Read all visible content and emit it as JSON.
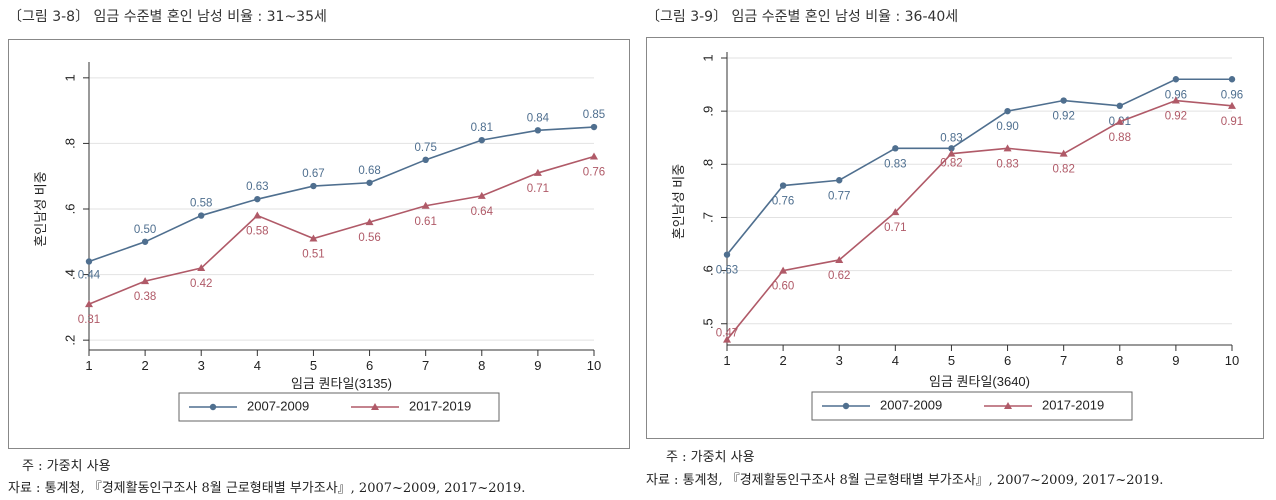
{
  "figures": [
    {
      "caption": "〔그림 3-8〕 임금 수준별 혼인 남성 비율 : 31~35세",
      "note": "주 : 가중치 사용",
      "source": "자료 : 통계청, 『경제활동인구조사 8월 근로형태별 부가조사』, 2007~2009, 2017~2019."
    },
    {
      "caption": "〔그림 3-9〕 임금 수준별 혼인 남성 비율 : 36-40세",
      "note": "주 : 가중치 사용",
      "source": "자료 : 통계청, 『경제활동인구조사 8월 근로형태별 부가조사』, 2007~2009, 2017~2019."
    }
  ],
  "chart_data": [
    {
      "type": "line",
      "x": [
        1,
        2,
        3,
        4,
        5,
        6,
        7,
        8,
        9,
        10
      ],
      "xticks": [
        "1",
        "2",
        "3",
        "4",
        "5",
        "6",
        "7",
        "8",
        "9",
        "10"
      ],
      "xlabel": "임금 퀀타일(3135)",
      "ylabel": "혼인남성 비중",
      "ylim": [
        0.17,
        1.03
      ],
      "yticks": [
        0.2,
        0.4,
        0.6,
        0.8,
        1.0
      ],
      "ytick_labels": [
        ".2",
        ".4",
        ".6",
        ".8",
        "1"
      ],
      "grid": true,
      "legend_position": "bottom",
      "series": [
        {
          "name": "2007-2009",
          "color": "#4f6f8f",
          "marker": "circle",
          "values": [
            0.44,
            0.5,
            0.58,
            0.63,
            0.67,
            0.68,
            0.75,
            0.81,
            0.84,
            0.85
          ],
          "labels": [
            "0.44",
            "0.50",
            "0.58",
            "0.63",
            "0.67",
            "0.68",
            "0.75",
            "0.81",
            "0.84",
            "0.85"
          ]
        },
        {
          "name": "2017-2019",
          "color": "#b05a68",
          "marker": "triangle",
          "values": [
            0.31,
            0.38,
            0.42,
            0.58,
            0.51,
            0.56,
            0.61,
            0.64,
            0.71,
            0.76
          ],
          "labels": [
            "0.31",
            "0.38",
            "0.42",
            "0.58",
            "0.51",
            "0.56",
            "0.61",
            "0.64",
            "0.71",
            "0.76"
          ]
        }
      ]
    },
    {
      "type": "line",
      "x": [
        1,
        2,
        3,
        4,
        5,
        6,
        7,
        8,
        9,
        10
      ],
      "xticks": [
        "1",
        "2",
        "3",
        "4",
        "5",
        "6",
        "7",
        "8",
        "9",
        "10"
      ],
      "xlabel": "임금 퀀타일(3640)",
      "ylabel": "혼인남성 비중",
      "ylim": [
        0.46,
        1.0
      ],
      "yticks": [
        0.5,
        0.6,
        0.7,
        0.8,
        0.9,
        1.0
      ],
      "ytick_labels": [
        ".5",
        ".6",
        ".7",
        ".8",
        ".9",
        "1"
      ],
      "grid": true,
      "legend_position": "bottom",
      "series": [
        {
          "name": "2007-2009",
          "color": "#4f6f8f",
          "marker": "circle",
          "values": [
            0.63,
            0.76,
            0.77,
            0.83,
            0.83,
            0.9,
            0.92,
            0.91,
            0.96,
            0.96
          ],
          "labels": [
            "0.63",
            "0.76",
            "0.77",
            "0.83",
            "0.83",
            "0.90",
            "0.92",
            "0.91",
            "0.96",
            "0.96"
          ]
        },
        {
          "name": "2017-2019",
          "color": "#b05a68",
          "marker": "triangle",
          "values": [
            0.47,
            0.6,
            0.62,
            0.71,
            0.82,
            0.83,
            0.82,
            0.88,
            0.92,
            0.91
          ],
          "labels": [
            "0.47",
            "0.60",
            "0.62",
            "0.71",
            "0.82",
            "0.83",
            "0.82",
            "0.88",
            "0.92",
            "0.91"
          ]
        }
      ]
    }
  ]
}
